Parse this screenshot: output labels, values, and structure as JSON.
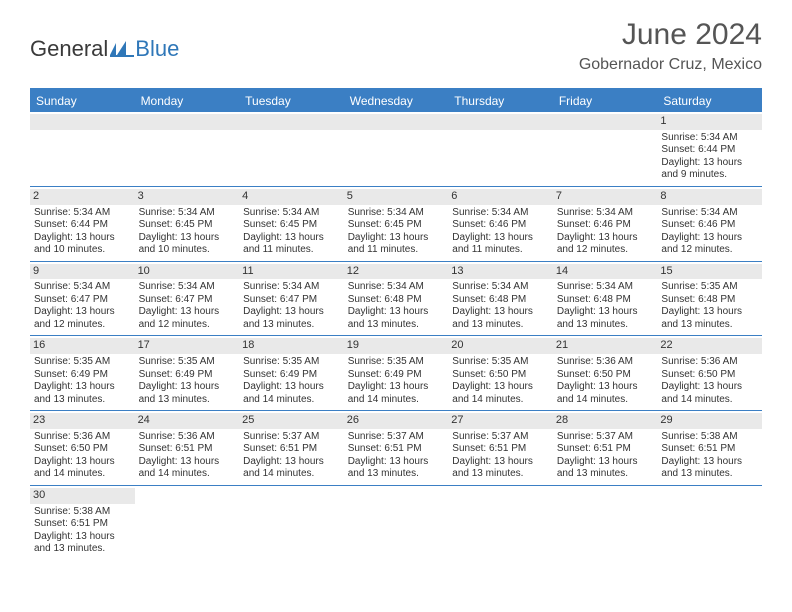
{
  "logo": {
    "part1": "General",
    "part2": "Blue"
  },
  "title": "June 2024",
  "location": "Gobernador Cruz, Mexico",
  "colors": {
    "header_bg": "#3b7fc4",
    "header_text": "#ffffff",
    "daynum_bg": "#e9e9e9",
    "border": "#3b7fc4",
    "logo_gray": "#3a3a3a",
    "logo_blue": "#2f77b8",
    "title_color": "#555555"
  },
  "day_headers": [
    "Sunday",
    "Monday",
    "Tuesday",
    "Wednesday",
    "Thursday",
    "Friday",
    "Saturday"
  ],
  "weeks": [
    [
      null,
      null,
      null,
      null,
      null,
      null,
      {
        "n": "1",
        "sr": "Sunrise: 5:34 AM",
        "ss": "Sunset: 6:44 PM",
        "d1": "Daylight: 13 hours",
        "d2": "and 9 minutes."
      }
    ],
    [
      {
        "n": "2",
        "sr": "Sunrise: 5:34 AM",
        "ss": "Sunset: 6:44 PM",
        "d1": "Daylight: 13 hours",
        "d2": "and 10 minutes."
      },
      {
        "n": "3",
        "sr": "Sunrise: 5:34 AM",
        "ss": "Sunset: 6:45 PM",
        "d1": "Daylight: 13 hours",
        "d2": "and 10 minutes."
      },
      {
        "n": "4",
        "sr": "Sunrise: 5:34 AM",
        "ss": "Sunset: 6:45 PM",
        "d1": "Daylight: 13 hours",
        "d2": "and 11 minutes."
      },
      {
        "n": "5",
        "sr": "Sunrise: 5:34 AM",
        "ss": "Sunset: 6:45 PM",
        "d1": "Daylight: 13 hours",
        "d2": "and 11 minutes."
      },
      {
        "n": "6",
        "sr": "Sunrise: 5:34 AM",
        "ss": "Sunset: 6:46 PM",
        "d1": "Daylight: 13 hours",
        "d2": "and 11 minutes."
      },
      {
        "n": "7",
        "sr": "Sunrise: 5:34 AM",
        "ss": "Sunset: 6:46 PM",
        "d1": "Daylight: 13 hours",
        "d2": "and 12 minutes."
      },
      {
        "n": "8",
        "sr": "Sunrise: 5:34 AM",
        "ss": "Sunset: 6:46 PM",
        "d1": "Daylight: 13 hours",
        "d2": "and 12 minutes."
      }
    ],
    [
      {
        "n": "9",
        "sr": "Sunrise: 5:34 AM",
        "ss": "Sunset: 6:47 PM",
        "d1": "Daylight: 13 hours",
        "d2": "and 12 minutes."
      },
      {
        "n": "10",
        "sr": "Sunrise: 5:34 AM",
        "ss": "Sunset: 6:47 PM",
        "d1": "Daylight: 13 hours",
        "d2": "and 12 minutes."
      },
      {
        "n": "11",
        "sr": "Sunrise: 5:34 AM",
        "ss": "Sunset: 6:47 PM",
        "d1": "Daylight: 13 hours",
        "d2": "and 13 minutes."
      },
      {
        "n": "12",
        "sr": "Sunrise: 5:34 AM",
        "ss": "Sunset: 6:48 PM",
        "d1": "Daylight: 13 hours",
        "d2": "and 13 minutes."
      },
      {
        "n": "13",
        "sr": "Sunrise: 5:34 AM",
        "ss": "Sunset: 6:48 PM",
        "d1": "Daylight: 13 hours",
        "d2": "and 13 minutes."
      },
      {
        "n": "14",
        "sr": "Sunrise: 5:34 AM",
        "ss": "Sunset: 6:48 PM",
        "d1": "Daylight: 13 hours",
        "d2": "and 13 minutes."
      },
      {
        "n": "15",
        "sr": "Sunrise: 5:35 AM",
        "ss": "Sunset: 6:48 PM",
        "d1": "Daylight: 13 hours",
        "d2": "and 13 minutes."
      }
    ],
    [
      {
        "n": "16",
        "sr": "Sunrise: 5:35 AM",
        "ss": "Sunset: 6:49 PM",
        "d1": "Daylight: 13 hours",
        "d2": "and 13 minutes."
      },
      {
        "n": "17",
        "sr": "Sunrise: 5:35 AM",
        "ss": "Sunset: 6:49 PM",
        "d1": "Daylight: 13 hours",
        "d2": "and 13 minutes."
      },
      {
        "n": "18",
        "sr": "Sunrise: 5:35 AM",
        "ss": "Sunset: 6:49 PM",
        "d1": "Daylight: 13 hours",
        "d2": "and 14 minutes."
      },
      {
        "n": "19",
        "sr": "Sunrise: 5:35 AM",
        "ss": "Sunset: 6:49 PM",
        "d1": "Daylight: 13 hours",
        "d2": "and 14 minutes."
      },
      {
        "n": "20",
        "sr": "Sunrise: 5:35 AM",
        "ss": "Sunset: 6:50 PM",
        "d1": "Daylight: 13 hours",
        "d2": "and 14 minutes."
      },
      {
        "n": "21",
        "sr": "Sunrise: 5:36 AM",
        "ss": "Sunset: 6:50 PM",
        "d1": "Daylight: 13 hours",
        "d2": "and 14 minutes."
      },
      {
        "n": "22",
        "sr": "Sunrise: 5:36 AM",
        "ss": "Sunset: 6:50 PM",
        "d1": "Daylight: 13 hours",
        "d2": "and 14 minutes."
      }
    ],
    [
      {
        "n": "23",
        "sr": "Sunrise: 5:36 AM",
        "ss": "Sunset: 6:50 PM",
        "d1": "Daylight: 13 hours",
        "d2": "and 14 minutes."
      },
      {
        "n": "24",
        "sr": "Sunrise: 5:36 AM",
        "ss": "Sunset: 6:51 PM",
        "d1": "Daylight: 13 hours",
        "d2": "and 14 minutes."
      },
      {
        "n": "25",
        "sr": "Sunrise: 5:37 AM",
        "ss": "Sunset: 6:51 PM",
        "d1": "Daylight: 13 hours",
        "d2": "and 14 minutes."
      },
      {
        "n": "26",
        "sr": "Sunrise: 5:37 AM",
        "ss": "Sunset: 6:51 PM",
        "d1": "Daylight: 13 hours",
        "d2": "and 13 minutes."
      },
      {
        "n": "27",
        "sr": "Sunrise: 5:37 AM",
        "ss": "Sunset: 6:51 PM",
        "d1": "Daylight: 13 hours",
        "d2": "and 13 minutes."
      },
      {
        "n": "28",
        "sr": "Sunrise: 5:37 AM",
        "ss": "Sunset: 6:51 PM",
        "d1": "Daylight: 13 hours",
        "d2": "and 13 minutes."
      },
      {
        "n": "29",
        "sr": "Sunrise: 5:38 AM",
        "ss": "Sunset: 6:51 PM",
        "d1": "Daylight: 13 hours",
        "d2": "and 13 minutes."
      }
    ],
    [
      {
        "n": "30",
        "sr": "Sunrise: 5:38 AM",
        "ss": "Sunset: 6:51 PM",
        "d1": "Daylight: 13 hours",
        "d2": "and 13 minutes."
      },
      null,
      null,
      null,
      null,
      null,
      null
    ]
  ]
}
